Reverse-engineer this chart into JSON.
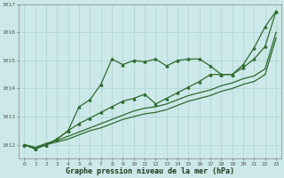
{
  "x": [
    0,
    1,
    2,
    3,
    4,
    5,
    6,
    7,
    8,
    9,
    10,
    11,
    12,
    13,
    14,
    15,
    16,
    17,
    18,
    19,
    20,
    21,
    22,
    23
  ],
  "line1": [
    1012.0,
    1011.85,
    1012.0,
    1012.2,
    1012.5,
    1013.35,
    1013.6,
    1014.15,
    1015.05,
    1014.85,
    1015.0,
    1014.95,
    1015.05,
    1014.8,
    1015.0,
    1015.05,
    1015.05,
    1014.8,
    1014.5,
    1014.5,
    1014.85,
    1015.45,
    1016.2,
    1016.75
  ],
  "line2": [
    1012.0,
    1011.85,
    1012.0,
    1012.2,
    1012.5,
    1012.75,
    1012.95,
    1013.15,
    1013.35,
    1013.55,
    1013.65,
    1013.8,
    1013.45,
    1013.65,
    1013.85,
    1014.05,
    1014.25,
    1014.5,
    1014.5,
    1014.5,
    1014.75,
    1015.05,
    1015.5,
    1016.75
  ],
  "line3": [
    1012.0,
    1011.9,
    1012.05,
    1012.15,
    1012.3,
    1012.45,
    1012.6,
    1012.75,
    1012.9,
    1013.05,
    1013.2,
    1013.3,
    1013.35,
    1013.45,
    1013.6,
    1013.75,
    1013.85,
    1013.95,
    1014.1,
    1014.2,
    1014.35,
    1014.45,
    1014.7,
    1016.0
  ],
  "line4": [
    1012.0,
    1011.9,
    1012.0,
    1012.1,
    1012.2,
    1012.35,
    1012.5,
    1012.6,
    1012.75,
    1012.9,
    1013.0,
    1013.1,
    1013.15,
    1013.25,
    1013.4,
    1013.55,
    1013.65,
    1013.75,
    1013.9,
    1014.0,
    1014.15,
    1014.25,
    1014.5,
    1015.8
  ],
  "line_color": "#2d6a2d",
  "bg_color": "#cce8e8",
  "grid_color": "#aad4d4",
  "xlabel": "Graphe pression niveau de la mer (hPa)",
  "ylim": [
    1011.5,
    1017.0
  ],
  "xlim": [
    -0.5,
    23.5
  ],
  "yticks": [
    1012,
    1013,
    1014,
    1015,
    1016,
    1017
  ],
  "xticks": [
    0,
    1,
    2,
    3,
    4,
    5,
    6,
    7,
    8,
    9,
    10,
    11,
    12,
    13,
    14,
    15,
    16,
    17,
    18,
    19,
    20,
    21,
    22,
    23
  ],
  "markersize": 2.0,
  "linewidth": 0.9
}
